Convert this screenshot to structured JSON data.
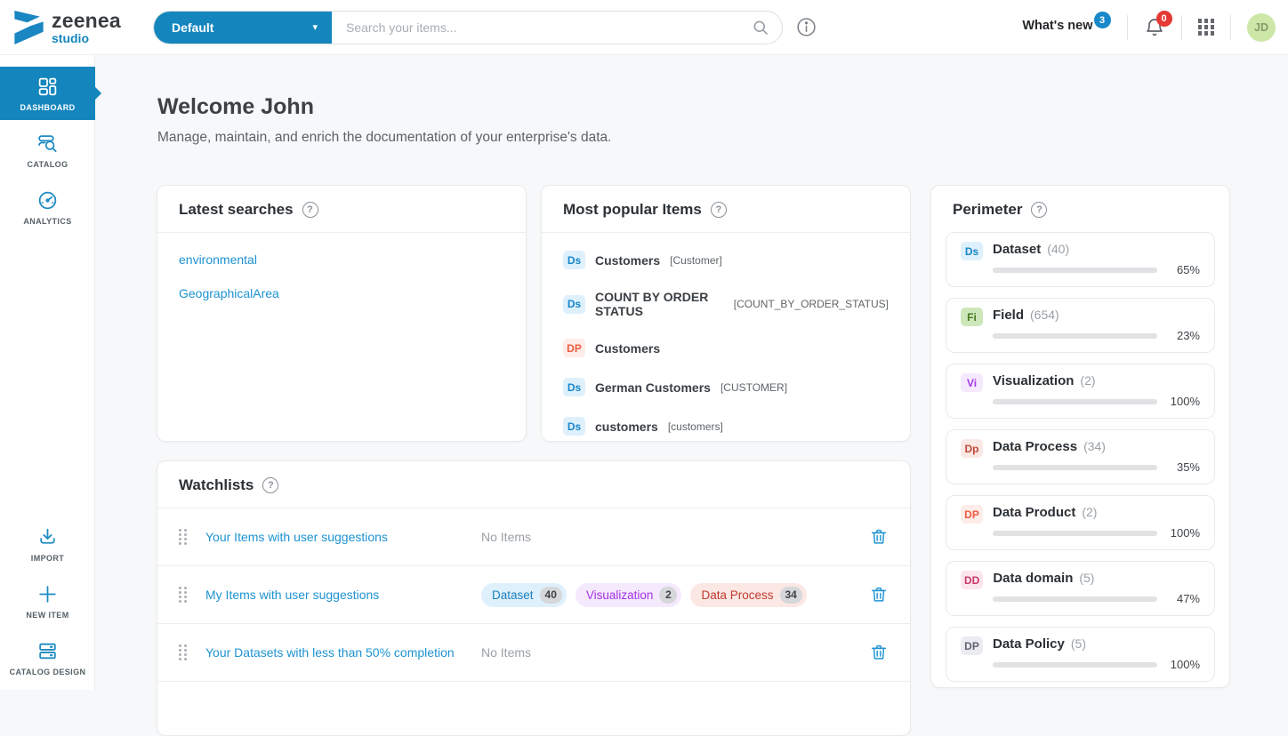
{
  "icons": {
    "help": "?",
    "caret": "▾"
  },
  "topbar": {
    "brand": {
      "name": "zeenea",
      "sub": "studio"
    },
    "workspace_selector": {
      "label": "Default"
    },
    "search": {
      "placeholder": "Search your items..."
    },
    "whats_new": {
      "label": "What's new",
      "badge": "3"
    },
    "notifications_badge": "0",
    "avatar_initials": "JD"
  },
  "sidebar": {
    "items": [
      {
        "label": "DASHBOARD"
      },
      {
        "label": "CATALOG"
      },
      {
        "label": "ANALYTICS"
      }
    ],
    "bottom_items": [
      {
        "label": "IMPORT"
      },
      {
        "label": "NEW ITEM"
      },
      {
        "label": "CATALOG DESIGN"
      }
    ]
  },
  "main": {
    "welcome_title": "Welcome John",
    "welcome_subtitle": "Manage, maintain, and enrich the documentation of your enterprise's data.",
    "latest_searches": {
      "title": "Latest searches",
      "items": [
        "environmental",
        "GeographicalArea"
      ]
    },
    "most_popular": {
      "title": "Most popular Items",
      "items": [
        {
          "badge": "Ds",
          "name": "Customers",
          "key": "[Customer]"
        },
        {
          "badge": "Ds",
          "name": "COUNT BY ORDER STATUS",
          "key": "[COUNT_BY_ORDER_STATUS]"
        },
        {
          "badge": "DP",
          "name": "Customers",
          "key": ""
        },
        {
          "badge": "Ds",
          "name": "German Customers",
          "key": "[CUSTOMER]"
        },
        {
          "badge": "Ds",
          "name": "customers",
          "key": "[customers]"
        }
      ]
    },
    "watchlists": {
      "title": "Watchlists",
      "rows": [
        {
          "name": "Your Items with user suggestions",
          "summary": "No Items"
        },
        {
          "name": "My Items with user suggestions",
          "summary": "",
          "pills": [
            {
              "label": "Dataset",
              "count": "40"
            },
            {
              "label": "Visualization",
              "count": "2"
            },
            {
              "label": "Data Process",
              "count": "34"
            }
          ]
        },
        {
          "name": "Your Datasets with less than 50% completion",
          "summary": "No Items"
        }
      ]
    },
    "perimeter": {
      "title": "Perimeter",
      "items": [
        {
          "badge": "Ds",
          "name": "Dataset",
          "count": "(40)",
          "percent": 65,
          "percent_label": "65%"
        },
        {
          "badge": "Fi",
          "name": "Field",
          "count": "(654)",
          "percent": 23,
          "percent_label": "23%"
        },
        {
          "badge": "Vi",
          "name": "Visualization",
          "count": "(2)",
          "percent": 100,
          "percent_label": "100%"
        },
        {
          "badge": "Dp",
          "name": "Data Process",
          "count": "(34)",
          "percent": 35,
          "percent_label": "35%"
        },
        {
          "badge": "DP",
          "name": "Data Product",
          "count": "(2)",
          "percent": 100,
          "percent_label": "100%"
        },
        {
          "badge": "DD",
          "name": "Data domain",
          "count": "(5)",
          "percent": 47,
          "percent_label": "47%"
        },
        {
          "badge": "DP",
          "name": "Data Policy",
          "count": "(5)",
          "percent": 100,
          "percent_label": "100%"
        }
      ]
    }
  },
  "colors": {
    "primary_blue": "#1486bd",
    "progress_blue": "#1178ab",
    "link_blue": "#1d93d2",
    "whats_new_badge_blue": "#1788c9",
    "notification_badge_red": "#e53935",
    "avatar_green": "#cde7a9"
  }
}
